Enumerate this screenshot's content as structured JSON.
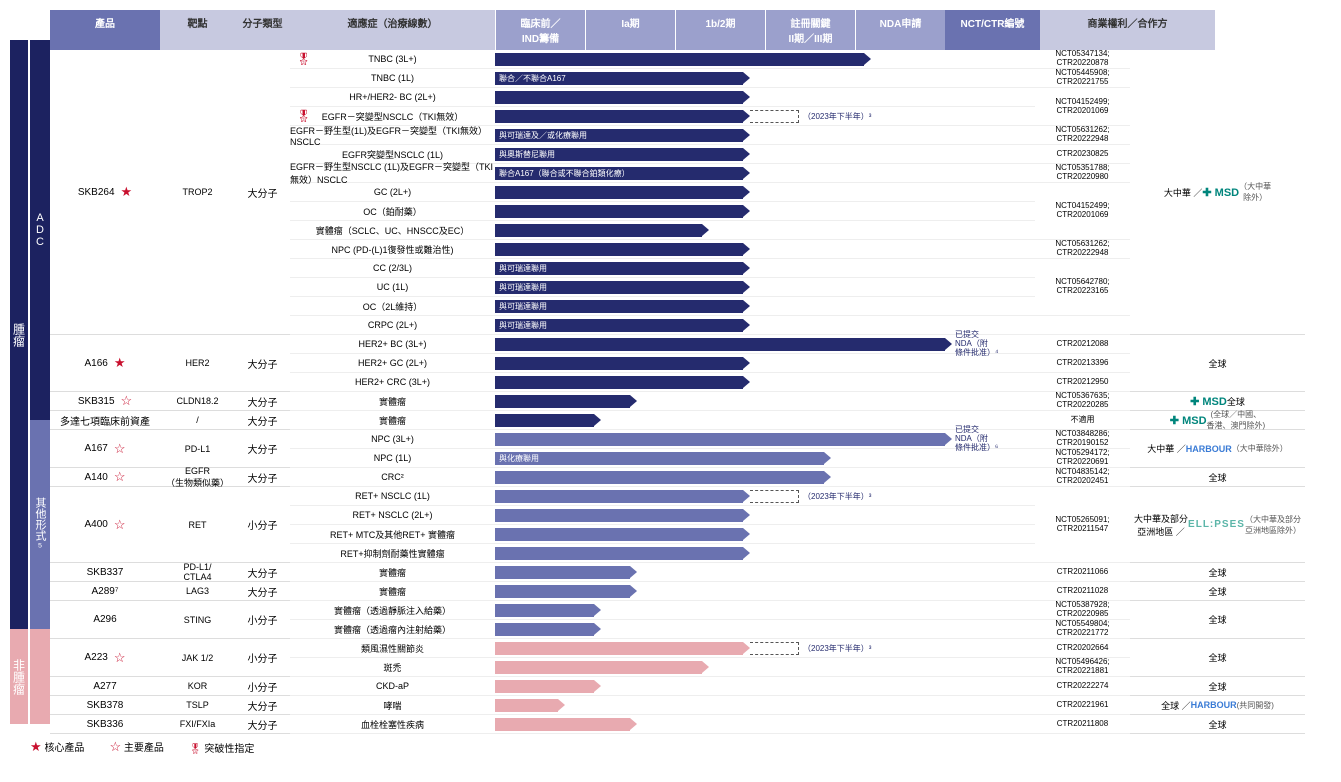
{
  "headers": {
    "product": "產品",
    "target": "靶點",
    "mol": "分子類型",
    "indication": "適應症（治療線數）",
    "phases": [
      "臨床前／\nIND籌備",
      "Ia期",
      "1b/2期",
      "註冊關鍵\nII期／III期",
      "NDA申請"
    ],
    "nct": "NCT/CTR編號",
    "rights": "商業權利／合作方"
  },
  "sections": [
    {
      "v_outer": "腫瘤",
      "v_inner": "ADC",
      "v_color": "navy",
      "products": [
        {
          "name": "SKB264",
          "star": "fill",
          "target": "TROP2",
          "mol": "大分子",
          "rights_html": "大中華 ／ <span class='msd'>✚ MSD</span><br><span class='daz'>（大中華<br>除外）</span>",
          "rows": [
            {
              "ind": "TNBC (3L+)",
              "medal": true,
              "bar": {
                "color": "navy",
                "pct": 82
              },
              "nct": "NCT05347134;\nCTR20220878"
            },
            {
              "ind": "TNBC (1L)",
              "bar": {
                "color": "navy",
                "pct": 55,
                "label": "聯合／不聯合A167"
              },
              "nct": "NCT05445908;\nCTR20221755"
            },
            {
              "ind": "HR+/HER2- BC (2L+)",
              "bar": {
                "color": "navy",
                "pct": 55
              },
              "nct": "NCT04152499;\nCTR20201069",
              "nct_span": 2
            },
            {
              "ind": "EGFR－突變型NSCLC（TKI無效）",
              "medal": true,
              "bar": {
                "color": "navy",
                "pct": 55
              },
              "ext": {
                "from": 55,
                "to": 66,
                "label": "（2023年下半年）³"
              },
              "nct": null
            },
            {
              "ind": "EGFR－野生型(1L)及EGFR－突變型（TKI無效）NSCLC",
              "bar": {
                "color": "navy",
                "pct": 55,
                "label": "與可瑞達及／或化療聯用"
              },
              "nct": "NCT05631262;\nCTR20222948"
            },
            {
              "ind": "EGFR突變型NSCLC (1L)",
              "bar": {
                "color": "navy",
                "pct": 55,
                "label": "與奧斯替尼聯用"
              },
              "nct": "CTR20230825"
            },
            {
              "ind": "EGFR－野生型NSCLC (1L)及EGFR－突變型（TKI無效）NSCLC",
              "bar": {
                "color": "navy",
                "pct": 55,
                "label": "聯合A167（聯合或不聯合鉑類化療）"
              },
              "nct": "NCT05351788;\nCTR20220980"
            },
            {
              "ind": "GC (2L+)",
              "bar": {
                "color": "navy",
                "pct": 55
              },
              "nct": "NCT04152499;\nCTR20201069",
              "nct_span": 3
            },
            {
              "ind": "OC（鉑耐藥）",
              "bar": {
                "color": "navy",
                "pct": 55
              },
              "nct": null
            },
            {
              "ind": "實體瘤（SCLC、UC、HNSCC及EC）",
              "bar": {
                "color": "navy",
                "pct": 46
              },
              "nct": null
            },
            {
              "ind": "NPC (PD-(L)1復發性或難治性)",
              "bar": {
                "color": "navy",
                "pct": 55
              },
              "nct": "NCT05631262;\nCTR20222948"
            },
            {
              "ind": "CC (2/3L)",
              "bar": {
                "color": "navy",
                "pct": 55,
                "label": "與可瑞達聯用"
              },
              "nct": "NCT05642780;\nCTR20223165",
              "nct_span": 3
            },
            {
              "ind": "UC (1L)",
              "bar": {
                "color": "navy",
                "pct": 55,
                "label": "與可瑞達聯用"
              },
              "nct": null
            },
            {
              "ind": "OC（2L維持）",
              "bar": {
                "color": "navy",
                "pct": 55,
                "label": "與可瑞達聯用"
              },
              "nct": null
            },
            {
              "ind": "CRPC (2L+)",
              "bar": {
                "color": "navy",
                "pct": 55,
                "label": "與可瑞達聯用"
              },
              "nct": ""
            }
          ]
        },
        {
          "name": "A166",
          "star": "fill",
          "target": "HER2",
          "mol": "大分子",
          "rights_html": "全球",
          "rows": [
            {
              "ind": "HER2+ BC (3L+)",
              "bar": {
                "color": "navy",
                "pct": 100
              },
              "ext_label": {
                "at": 100,
                "text": "已提交\nNDA（附\n條件批准）⁴"
              },
              "nct": "CTR20212088"
            },
            {
              "ind": "HER2+ GC (2L+)",
              "bar": {
                "color": "navy",
                "pct": 55
              },
              "nct": "CTR20213396"
            },
            {
              "ind": "HER2+ CRC (3L+)",
              "bar": {
                "color": "navy",
                "pct": 55
              },
              "nct": "CTR20212950"
            }
          ]
        },
        {
          "name": "SKB315",
          "star": "out",
          "target": "CLDN18.2",
          "mol": "大分子",
          "rights_html": "<span class='msd'>✚ MSD</span> 全球",
          "rows": [
            {
              "ind": "實體瘤",
              "bar": {
                "color": "navy",
                "pct": 30
              },
              "nct": "NCT05367635;\nCTR20220285"
            }
          ]
        },
        {
          "name": "多達七項臨床前資產",
          "target": "/",
          "mol": "大分子",
          "rights_html": "<span class='msd'>✚ MSD</span> <span class='daz'>(全球／中國、<br>香港、澳門除外)</span>",
          "rows": [
            {
              "ind": "實體瘤",
              "bar": {
                "color": "navy",
                "pct": 22
              },
              "nct": "不適用"
            }
          ]
        }
      ]
    },
    {
      "v_inner": "其他形式⁵",
      "v_color": "purple",
      "products": [
        {
          "name": "A167",
          "star": "out",
          "target": "PD-L1",
          "mol": "大分子",
          "rights_html": "大中華 ／ <span class='harbour'>HARBOUR</span><br><span class='daz'>（大中華除外）</span>",
          "rows": [
            {
              "ind": "NPC (3L+)",
              "bar": {
                "color": "purple",
                "pct": 100
              },
              "ext_label": {
                "at": 100,
                "text": "已提交\nNDA（附\n條件批准）⁶"
              },
              "nct": "NCT03848286;\nCTR20190152"
            },
            {
              "ind": "NPC (1L)",
              "bar": {
                "color": "purple",
                "pct": 73,
                "label": "與化療聯用"
              },
              "nct": "NCT05294172;\nCTR20220691"
            }
          ]
        },
        {
          "name": "A140",
          "star": "out",
          "target": "EGFR\n（生物類似藥）",
          "mol": "大分子",
          "rights_html": "全球",
          "rows": [
            {
              "ind": "CRC²",
              "bar": {
                "color": "purple",
                "pct": 73
              },
              "nct": "NCT04835142;\nCTR20202451"
            }
          ]
        },
        {
          "name": "A400",
          "star": "out",
          "target": "RET",
          "mol": "小分子",
          "rights_html": "大中華及部分<br>亞洲地區 ／ <span class='ellipses'>ELL:PSES</span><br><span class='daz'>（大中華及部分<br>亞洲地區除外）</span>",
          "rows": [
            {
              "ind": "RET+ NSCLC (1L)",
              "bar": {
                "color": "purple",
                "pct": 55
              },
              "ext": {
                "from": 55,
                "to": 66,
                "label": "（2023年下半年）³"
              },
              "nct": "NCT05265091;\nCTR20211547",
              "nct_span": 4
            },
            {
              "ind": "RET+ NSCLC (2L+)",
              "bar": {
                "color": "purple",
                "pct": 55
              },
              "nct": null
            },
            {
              "ind": "RET+ MTC及其他RET+ 實體瘤",
              "bar": {
                "color": "purple",
                "pct": 55
              },
              "nct": null
            },
            {
              "ind": "RET+抑制劑耐藥性實體瘤",
              "bar": {
                "color": "purple",
                "pct": 55
              },
              "nct": null
            }
          ]
        },
        {
          "name": "SKB337",
          "target": "PD-L1/\nCTLA4",
          "mol": "大分子",
          "rights_html": "全球",
          "rows": [
            {
              "ind": "實體瘤",
              "bar": {
                "color": "purple",
                "pct": 30
              },
              "nct": "CTR20211066"
            }
          ]
        },
        {
          "name": "A289⁷",
          "target": "LAG3",
          "mol": "大分子",
          "rights_html": "全球",
          "rows": [
            {
              "ind": "實體瘤",
              "bar": {
                "color": "purple",
                "pct": 30
              },
              "nct": "CTR20211028"
            }
          ]
        },
        {
          "name": "A296",
          "target": "STING",
          "mol": "小分子",
          "rights_html": "全球",
          "rows": [
            {
              "ind": "實體瘤（透過靜脈注入給藥）",
              "bar": {
                "color": "purple",
                "pct": 22
              },
              "nct": "NCT05387928;\nCTR20220985"
            },
            {
              "ind": "實體瘤（透過瘤內注射給藥）",
              "bar": {
                "color": "purple",
                "pct": 22
              },
              "nct": "NCT05549804;\nCTR20221772"
            }
          ]
        }
      ]
    },
    {
      "v_outer": "非腫瘤",
      "v_inner": "",
      "v_color": "pink",
      "products": [
        {
          "name": "A223",
          "star": "out",
          "target": "JAK 1/2",
          "mol": "小分子",
          "rights_html": "全球",
          "rows": [
            {
              "ind": "類風濕性關節炎",
              "bar": {
                "color": "pink",
                "pct": 55
              },
              "ext": {
                "from": 55,
                "to": 66,
                "label": "（2023年下半年）³"
              },
              "nct": "CTR20202664"
            },
            {
              "ind": "斑禿",
              "bar": {
                "color": "pink",
                "pct": 46
              },
              "nct": "NCT05496426;\nCTR20221881"
            }
          ]
        },
        {
          "name": "A277",
          "target": "KOR",
          "mol": "小分子",
          "rights_html": "全球",
          "rows": [
            {
              "ind": "CKD-aP",
              "bar": {
                "color": "pink",
                "pct": 22
              },
              "nct": "CTR20222274"
            }
          ]
        },
        {
          "name": "SKB378",
          "target": "TSLP",
          "mol": "大分子",
          "rights_html": "全球 ／ <span class='harbour'>HARBOUR</span><span class='daz'>(共同開發)</span>",
          "rows": [
            {
              "ind": "哮喘",
              "bar": {
                "color": "pink",
                "pct": 14
              },
              "nct": "CTR20221961"
            }
          ]
        },
        {
          "name": "SKB336",
          "target": "FXI/FXIa",
          "mol": "大分子",
          "rights_html": "全球",
          "rows": [
            {
              "ind": "血栓栓塞性疾病",
              "bar": {
                "color": "pink",
                "pct": 30
              },
              "nct": "CTR20211808"
            }
          ]
        }
      ]
    }
  ],
  "legend": {
    "core": "核心產品",
    "main": "主要產品",
    "bt": "突破性指定"
  }
}
